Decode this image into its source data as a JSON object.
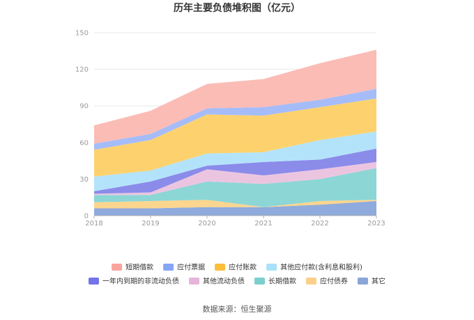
{
  "chart_data": {
    "type": "area",
    "stacked": true,
    "title": "历年主要负债堆积图（亿元）",
    "x": [
      "2018",
      "2019",
      "2020",
      "2021",
      "2022",
      "2023"
    ],
    "ylim": [
      0,
      150
    ],
    "yticks": [
      0,
      30,
      60,
      90,
      120,
      150
    ],
    "grid": true,
    "legend_position": "bottom",
    "series": [
      {
        "name": "其它",
        "color": "#8faadc",
        "values": [
          6,
          6,
          7,
          7,
          9,
          12
        ]
      },
      {
        "name": "应付债券",
        "color": "#fcd58e",
        "values": [
          5,
          6,
          6,
          0,
          3,
          1
        ]
      },
      {
        "name": "长期借款",
        "color": "#8cd6d6",
        "values": [
          6,
          5,
          15,
          19,
          18,
          26
        ]
      },
      {
        "name": "其他流动负债",
        "color": "#ebc5e0",
        "values": [
          1,
          2,
          10,
          7,
          8,
          5
        ]
      },
      {
        "name": "一年内到期的非流动负债",
        "color": "#8b8bea",
        "values": [
          2,
          9,
          3,
          11,
          8,
          11
        ]
      },
      {
        "name": "其他应付款(含利息和股利)",
        "color": "#b3e3fa",
        "values": [
          12,
          9,
          10,
          8,
          16,
          14
        ]
      },
      {
        "name": "应付账款",
        "color": "#fdd26e",
        "values": [
          22,
          25,
          32,
          30,
          27,
          27
        ]
      },
      {
        "name": "应付票据",
        "color": "#a6bcf8",
        "values": [
          5,
          5,
          5,
          7,
          6,
          8
        ]
      },
      {
        "name": "短期借款",
        "color": "#fbbcb6",
        "values": [
          15,
          19,
          20,
          23,
          30,
          32
        ]
      }
    ],
    "legend": [
      {
        "name": "短期借款",
        "color": "#f9a59d"
      },
      {
        "name": "应付票据",
        "color": "#85a5f7"
      },
      {
        "name": "应付账款",
        "color": "#fcbd3a"
      },
      {
        "name": "其他应付款(含利息和股利)",
        "color": "#a9e1fa"
      },
      {
        "name": "一年内到期的非流动负债",
        "color": "#7373ea"
      },
      {
        "name": "其他流动负债",
        "color": "#e7b5da"
      },
      {
        "name": "长期借款",
        "color": "#7ccfcf"
      },
      {
        "name": "应付债券",
        "color": "#fcd08a"
      },
      {
        "name": "其它",
        "color": "#8aa6d8"
      }
    ]
  },
  "source": "数据来源：恒生聚源"
}
